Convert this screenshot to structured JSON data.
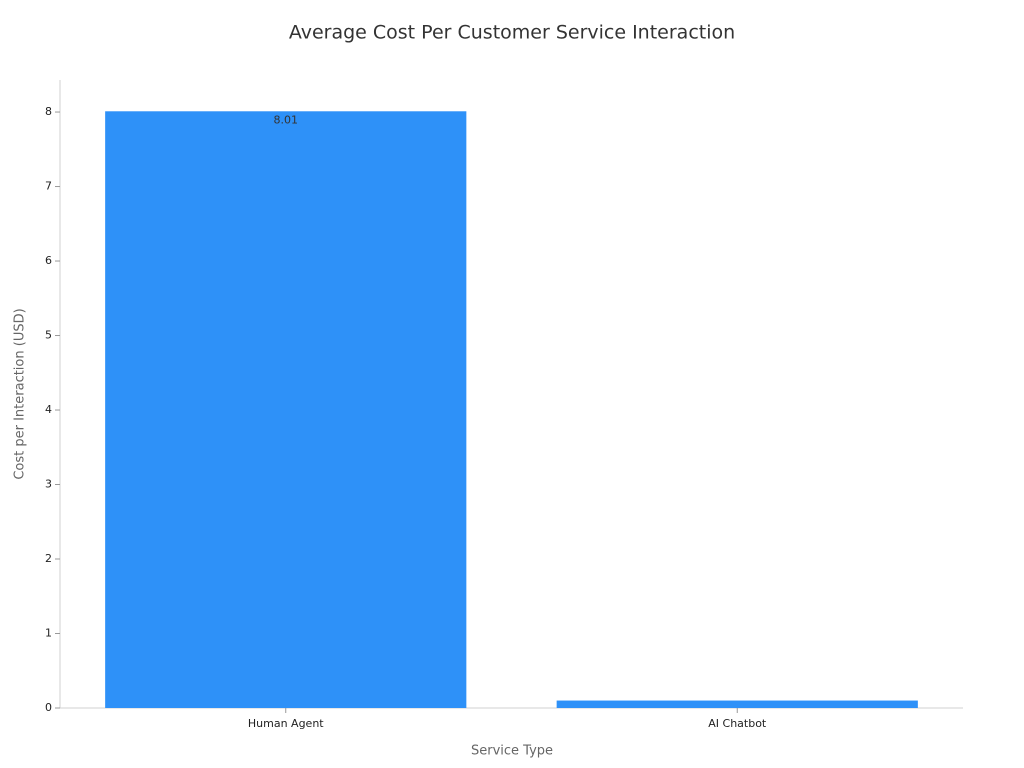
{
  "chart_data": {
    "type": "bar",
    "title": "Average Cost Per Customer Service Interaction",
    "x_label": "Service Type",
    "y_label": "Cost per Interaction (USD)",
    "categories": [
      "Human Agent",
      "AI Chatbot"
    ],
    "values": [
      8.01,
      0.1
    ],
    "value_labels": [
      "8.01",
      null
    ],
    "color": "#2e91f8",
    "ylim": [
      0,
      8.43
    ],
    "yticks": [
      0,
      1,
      2,
      3,
      4,
      5,
      6,
      7,
      8
    ],
    "grid": false
  }
}
